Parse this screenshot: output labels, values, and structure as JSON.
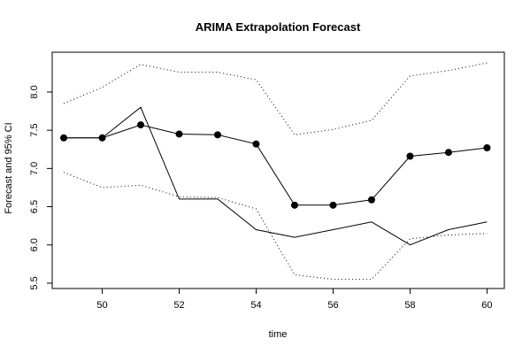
{
  "chart_data": {
    "type": "line",
    "title": "ARIMA Extrapolation Forecast",
    "xlabel": "time",
    "ylabel": "Forecast and 95% CI",
    "xlim": [
      48.7,
      60.45
    ],
    "ylim": [
      5.43,
      8.52
    ],
    "xticks": [
      50,
      52,
      54,
      56,
      58,
      60
    ],
    "yticks": [
      5.5,
      6.0,
      6.5,
      7.0,
      7.5,
      8.0
    ],
    "ytick_labels": [
      "5.5",
      "6.0",
      "6.5",
      "7.0",
      "7.5",
      "8.0"
    ],
    "grid": false,
    "x": [
      49,
      50,
      51,
      52,
      53,
      54,
      55,
      56,
      57,
      58,
      59,
      60
    ],
    "series": [
      {
        "role": "forecast",
        "style": "solid line with filled points",
        "values": [
          7.4,
          7.4,
          7.57,
          7.45,
          7.44,
          7.32,
          6.52,
          6.52,
          6.59,
          7.16,
          7.21,
          7.27
        ]
      },
      {
        "role": "actual",
        "style": "solid line",
        "values": [
          7.4,
          7.4,
          7.8,
          6.6,
          6.6,
          6.2,
          6.1,
          6.2,
          6.3,
          6.0,
          6.2,
          6.3
        ]
      },
      {
        "role": "upper-95",
        "style": "dotted line",
        "values": [
          7.85,
          8.06,
          8.36,
          8.26,
          8.26,
          8.16,
          7.44,
          7.51,
          7.63,
          8.21,
          8.28,
          8.38
        ]
      },
      {
        "role": "lower-95",
        "style": "dotted line",
        "values": [
          6.95,
          6.75,
          6.78,
          6.63,
          6.62,
          6.47,
          5.61,
          5.55,
          5.55,
          6.08,
          6.13,
          6.15
        ]
      }
    ]
  }
}
